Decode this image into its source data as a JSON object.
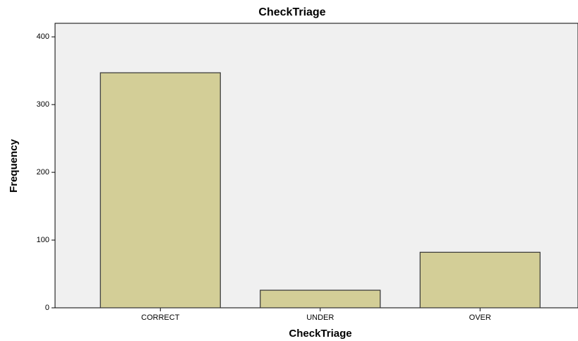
{
  "chart_data": {
    "type": "bar",
    "title": "CheckTriage",
    "x_label": "CheckTriage",
    "y_label": "Frequency",
    "categories": [
      "CORRECT",
      "UNDER",
      "OVER"
    ],
    "values": [
      347,
      26,
      82
    ],
    "color": "#d3ce97",
    "ylim": [
      0,
      420
    ],
    "yticks": [
      0,
      100,
      200,
      300,
      400
    ],
    "grid": false
  }
}
